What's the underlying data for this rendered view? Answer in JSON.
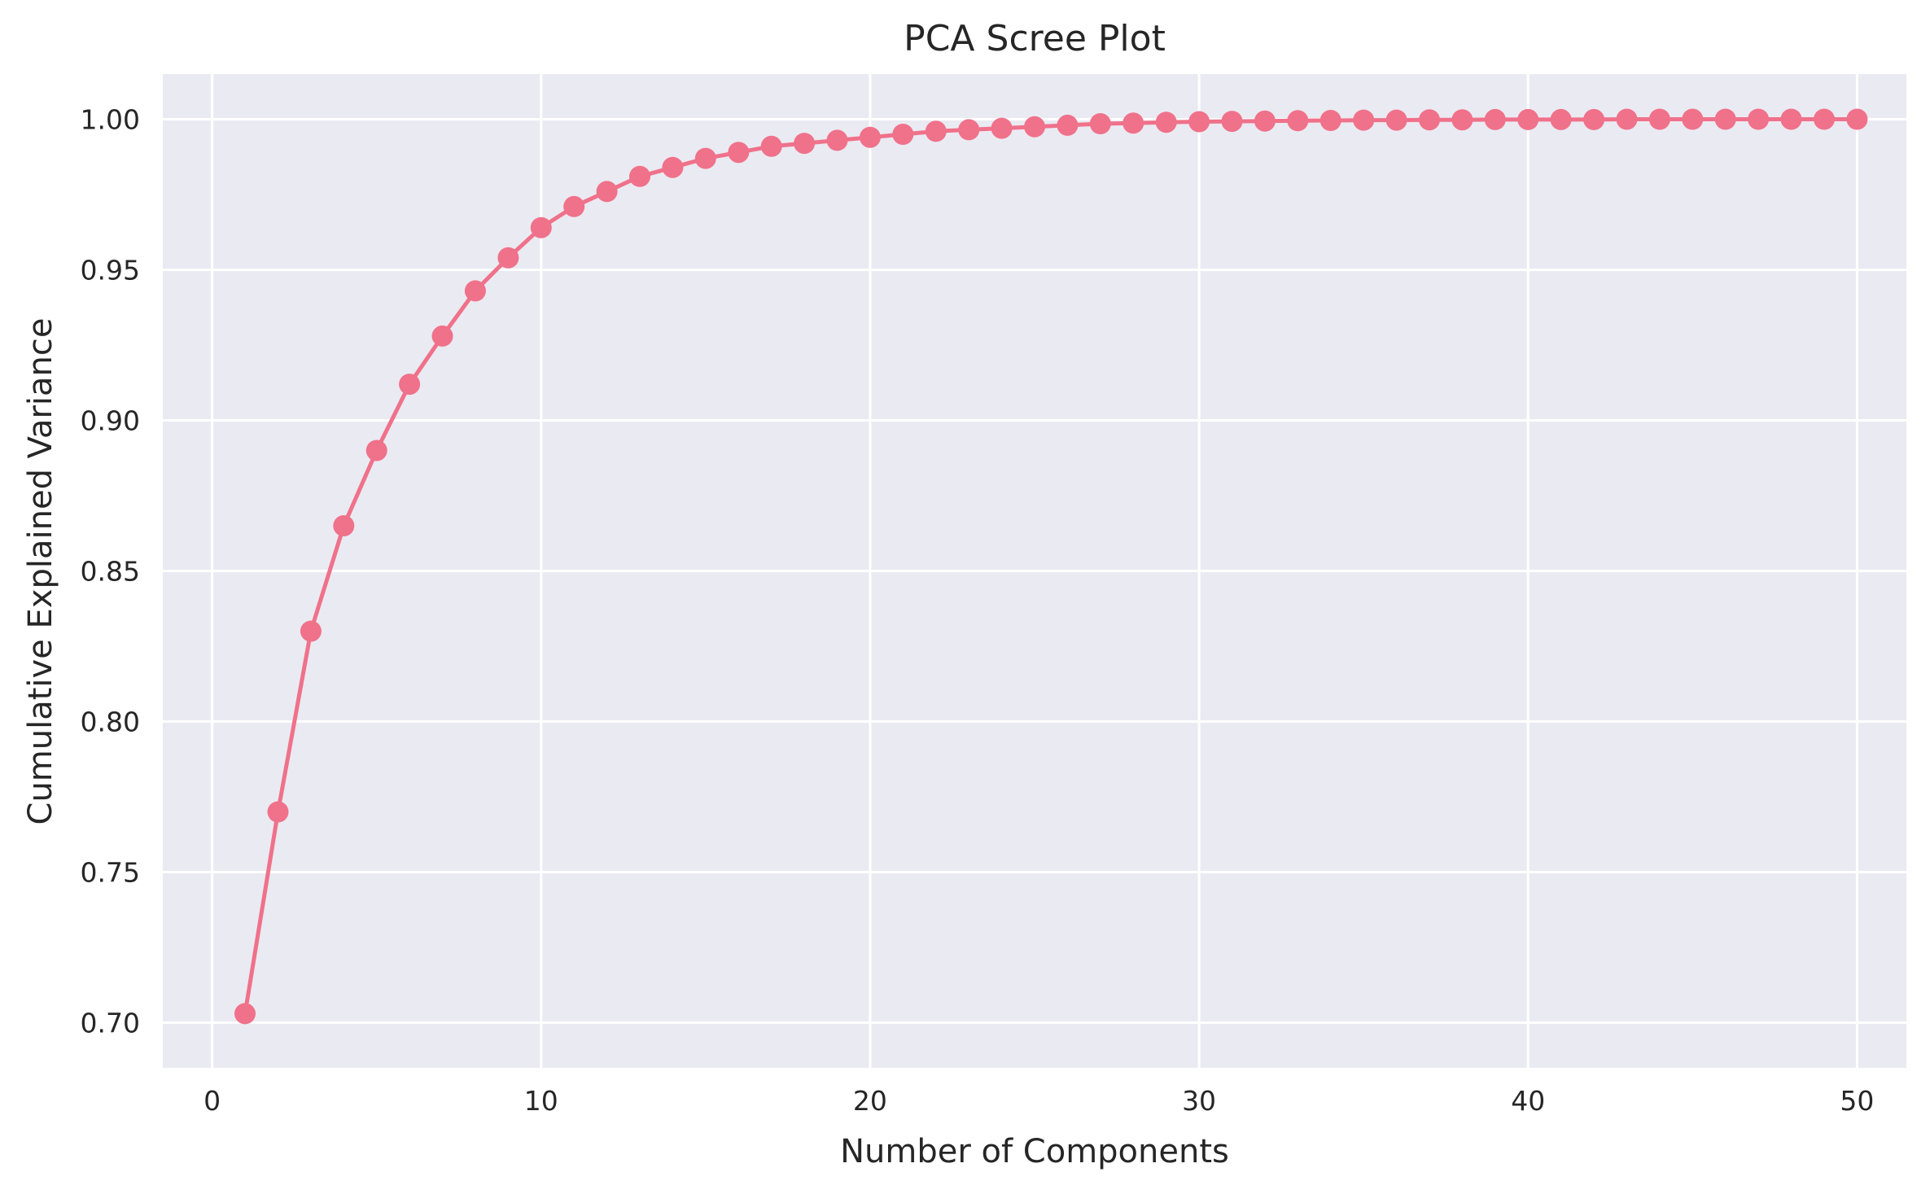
{
  "chart_data": {
    "type": "line",
    "title": "PCA Scree Plot",
    "xlabel": "Number of Components",
    "ylabel": "Cumulative Explained Variance",
    "xlim": [
      -1.5,
      51.5
    ],
    "ylim": [
      0.685,
      1.015
    ],
    "xticks": [
      0,
      10,
      20,
      30,
      40,
      50
    ],
    "xtick_labels": [
      "0",
      "10",
      "20",
      "30",
      "40",
      "50"
    ],
    "yticks": [
      0.7,
      0.75,
      0.8,
      0.85,
      0.9,
      0.95,
      1.0
    ],
    "ytick_labels": [
      "0.70",
      "0.75",
      "0.80",
      "0.85",
      "0.90",
      "0.95",
      "1.00"
    ],
    "grid": true,
    "marker": "circle",
    "series": [
      {
        "color": "#f0718a",
        "x": [
          1,
          2,
          3,
          4,
          5,
          6,
          7,
          8,
          9,
          10,
          11,
          12,
          13,
          14,
          15,
          16,
          17,
          18,
          19,
          20,
          21,
          22,
          23,
          24,
          25,
          26,
          27,
          28,
          29,
          30,
          31,
          32,
          33,
          34,
          35,
          36,
          37,
          38,
          39,
          40,
          41,
          42,
          43,
          44,
          45,
          46,
          47,
          48,
          49,
          50
        ],
        "values": [
          0.703,
          0.77,
          0.83,
          0.865,
          0.89,
          0.912,
          0.928,
          0.943,
          0.954,
          0.964,
          0.971,
          0.976,
          0.981,
          0.984,
          0.987,
          0.989,
          0.991,
          0.992,
          0.993,
          0.994,
          0.995,
          0.996,
          0.9965,
          0.997,
          0.9975,
          0.998,
          0.9985,
          0.9987,
          0.999,
          0.9992,
          0.9993,
          0.9994,
          0.9995,
          0.9996,
          0.9997,
          0.9997,
          0.9998,
          0.9998,
          0.9999,
          0.9999,
          0.9999,
          0.9999,
          1.0,
          1.0,
          1.0,
          1.0,
          1.0,
          1.0,
          1.0,
          1.0
        ]
      }
    ],
    "colors": {
      "plot_background": "#eaeaf2",
      "grid": "#ffffff",
      "text": "#262626",
      "line": "#f0718a"
    }
  }
}
